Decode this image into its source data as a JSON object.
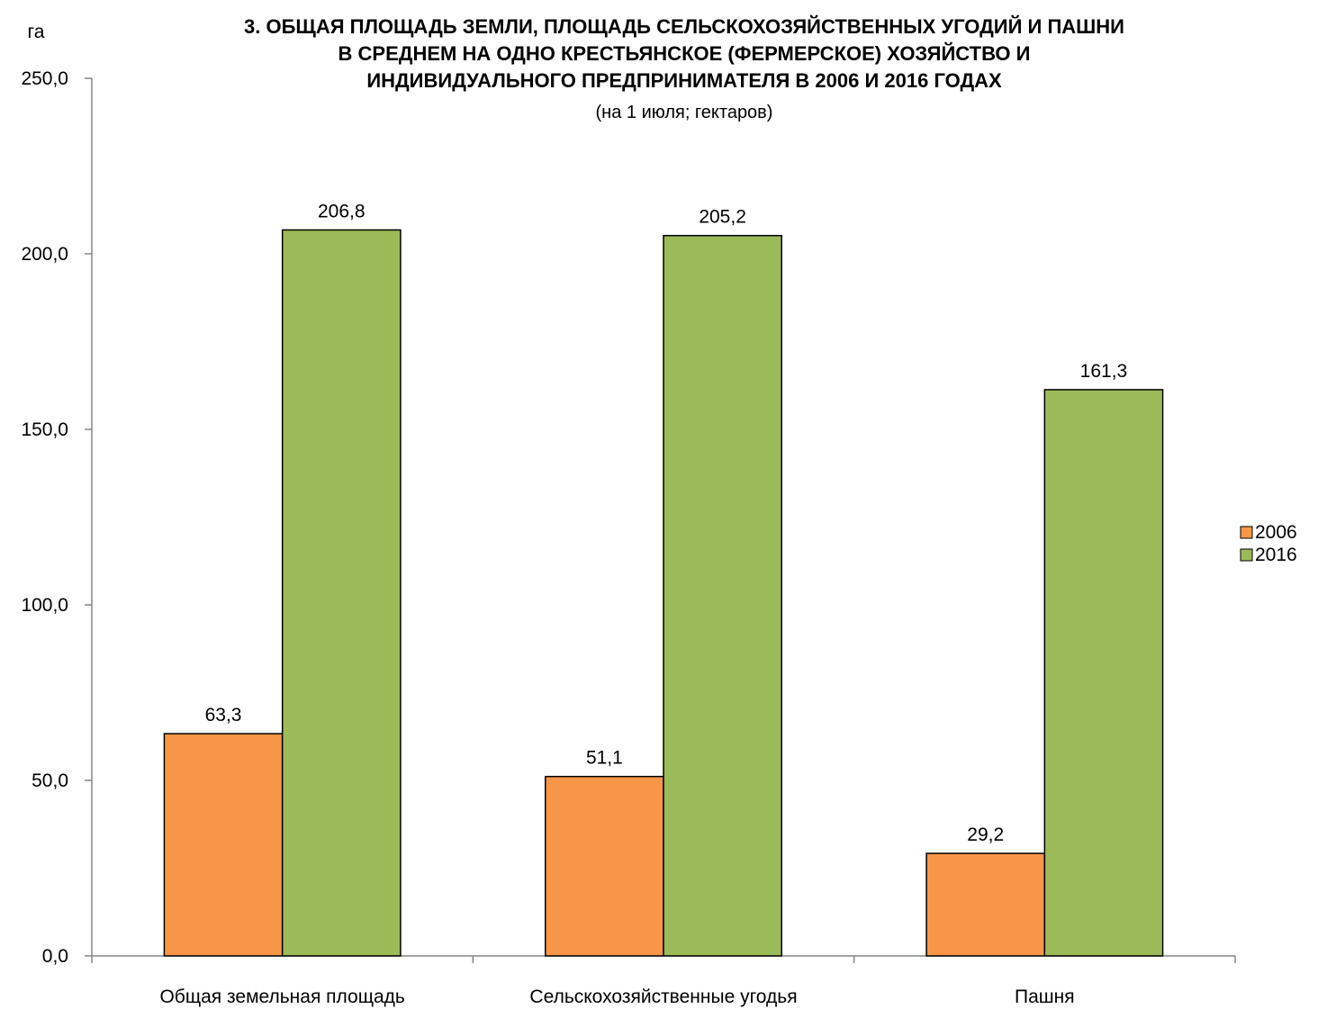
{
  "chart_data": {
    "type": "bar",
    "title_lines": [
      "3. ОБЩАЯ ПЛОЩАДЬ  ЗЕМЛИ, ПЛОЩАДЬ  СЕЛЬСКОХОЗЯЙСТВЕННЫХ  УГОДИЙ  И ПАШНИ",
      "В СРЕДНЕМ  НА  ОДНО КРЕСТЬЯНСКОЕ  (ФЕРМЕРСКОЕ)  ХОЗЯЙСТВО  И",
      "ИНДИВИДУАЛЬНОГО  ПРЕДПРИНИМАТЕЛЯ  В 2006 И 2016 ГОДАХ"
    ],
    "subtitle": "(на 1 июля; гектаров)",
    "ylabel": "га",
    "ylim": [
      0,
      250
    ],
    "y_ticks": [
      "0,0",
      "50,0",
      "100,0",
      "150,0",
      "200,0",
      "250,0"
    ],
    "categories": [
      "Общая земельная  площадь",
      "Сельскохозяйственные угодья",
      "Пашня"
    ],
    "series": [
      {
        "name": "2006",
        "color": "#f79646",
        "values": [
          63.3,
          51.1,
          29.2
        ],
        "labels": [
          "63,3",
          "51,1",
          "29,2"
        ]
      },
      {
        "name": "2016",
        "color": "#9bbb59",
        "values": [
          206.8,
          205.2,
          161.3
        ],
        "labels": [
          "206,8",
          "205,2",
          "161,3"
        ]
      }
    ],
    "legend_position": "right",
    "grid": false
  }
}
